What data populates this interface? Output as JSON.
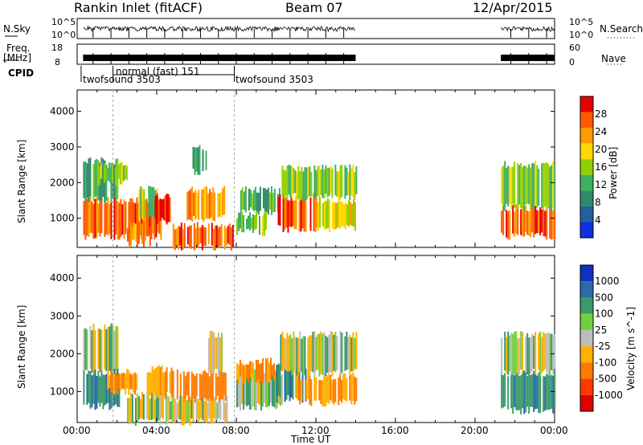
{
  "header": {
    "station": "Rankin Inlet (fitACF)",
    "beam": "Beam 07",
    "date": "12/Apr/2015"
  },
  "strip_labels": {
    "nsky": "N.Sky",
    "nsky_ticks": [
      "10^5",
      "10^0"
    ],
    "nsearch": "N.Search",
    "nsearch_ticks": [
      "10^5",
      "10^0"
    ],
    "freq": "Freq.",
    "freq_unit": "[MHz]",
    "freq_ticks": [
      "18",
      "8"
    ],
    "nave": "Nave",
    "nave_ticks": [
      "60",
      "0"
    ],
    "cpid": "CPID"
  },
  "cpid_labels": [
    "twofsound 3503",
    "normal (fast) 151",
    "twofsound 3503"
  ],
  "power_colorbar": {
    "label": "Power [dB]",
    "ticks": [
      "28",
      "24",
      "20",
      "16",
      "12",
      "8",
      "4"
    ],
    "colors": [
      "#e60000",
      "#ff5a00",
      "#ff9a00",
      "#ffd800",
      "#94d000",
      "#3fb060",
      "#2f8a6a",
      "#2060a0",
      "#1030e0"
    ]
  },
  "velocity_colorbar": {
    "label": "Velocity [m s^-1]",
    "ticks": [
      "1000",
      "500",
      "100",
      "25",
      "-25",
      "-100",
      "-500",
      "-1000"
    ],
    "colors": [
      "#1030c0",
      "#2a6aa8",
      "#3a9a6a",
      "#70d040",
      "#bdbdbd",
      "#ffb000",
      "#ff7a00",
      "#ff3a00",
      "#e00000"
    ]
  },
  "chart_data": [
    {
      "type": "heatmap",
      "panel": "power",
      "ylabel": "Slant Range [km]",
      "yticks": [
        1000,
        2000,
        3000,
        4000
      ],
      "ylim": [
        180,
        4600
      ],
      "xlim": [
        0,
        24
      ],
      "data_extent_hours": [
        [
          0.3,
          14.0
        ],
        [
          21.3,
          24.0
        ]
      ],
      "cells": [
        {
          "x": [
            0.3,
            4.2
          ],
          "y": [
            500,
            1500
          ],
          "power": 26
        },
        {
          "x": [
            0.3,
            2.0
          ],
          "y": [
            1500,
            2600
          ],
          "power": 10
        },
        {
          "x": [
            1.0,
            2.5
          ],
          "y": [
            2000,
            2500
          ],
          "power": 14
        },
        {
          "x": [
            2.5,
            3.7
          ],
          "y": [
            300,
            800
          ],
          "power": 24
        },
        {
          "x": [
            3.0,
            4.0
          ],
          "y": [
            1000,
            1800
          ],
          "power": 14
        },
        {
          "x": [
            3.9,
            4.7
          ],
          "y": [
            900,
            1600
          ],
          "power": 29
        },
        {
          "x": [
            4.8,
            7.8
          ],
          "y": [
            200,
            800
          ],
          "power": 26
        },
        {
          "x": [
            5.5,
            7.4
          ],
          "y": [
            1000,
            1800
          ],
          "power": 22
        },
        {
          "x": [
            5.8,
            6.5
          ],
          "y": [
            2300,
            3000
          ],
          "power": 8
        },
        {
          "x": [
            8.2,
            10.2
          ],
          "y": [
            1200,
            1800
          ],
          "power": 10
        },
        {
          "x": [
            8.0,
            9.5
          ],
          "y": [
            600,
            1100
          ],
          "power": 14
        },
        {
          "x": [
            10.0,
            12.0
          ],
          "y": [
            700,
            1600
          ],
          "power": 27
        },
        {
          "x": [
            10.2,
            14.0
          ],
          "y": [
            1600,
            2400
          ],
          "power": 14
        },
        {
          "x": [
            12.0,
            14.0
          ],
          "y": [
            700,
            1500
          ],
          "power": 18
        },
        {
          "x": [
            21.3,
            24.0
          ],
          "y": [
            500,
            1300
          ],
          "power": 26
        },
        {
          "x": [
            21.3,
            24.0
          ],
          "y": [
            1300,
            2500
          ],
          "power": 14
        }
      ]
    },
    {
      "type": "heatmap",
      "panel": "velocity",
      "ylabel": "Slant Range [km]",
      "xlabel": "Time UT",
      "xticks": [
        "00:00",
        "04:00",
        "08:00",
        "12:00",
        "16:00",
        "20:00",
        "00:00"
      ],
      "xtick_hours": [
        0,
        4,
        8,
        12,
        16,
        20,
        24
      ],
      "yticks": [
        1000,
        2000,
        3000,
        4000
      ],
      "ylim": [
        180,
        4600
      ],
      "xlim": [
        0,
        24
      ],
      "data_extent_hours": [
        [
          0.3,
          14.0
        ],
        [
          21.3,
          24.0
        ]
      ],
      "cells": [
        {
          "x": [
            0.3,
            2.0
          ],
          "y": [
            1500,
            2700
          ],
          "velocity": 0
        },
        {
          "x": [
            0.3,
            2.2
          ],
          "y": [
            600,
            1500
          ],
          "velocity": 150
        },
        {
          "x": [
            1.5,
            3.0
          ],
          "y": [
            1000,
            1500
          ],
          "velocity": -200
        },
        {
          "x": [
            2.5,
            4.5
          ],
          "y": [
            200,
            900
          ],
          "velocity": 0
        },
        {
          "x": [
            3.5,
            4.8
          ],
          "y": [
            900,
            1600
          ],
          "velocity": -150
        },
        {
          "x": [
            4.5,
            7.5
          ],
          "y": [
            200,
            800
          ],
          "velocity": 0
        },
        {
          "x": [
            5.0,
            7.5
          ],
          "y": [
            800,
            1500
          ],
          "velocity": -300
        },
        {
          "x": [
            6.5,
            7.3
          ],
          "y": [
            1500,
            2500
          ],
          "velocity": 0
        },
        {
          "x": [
            8.0,
            10.3
          ],
          "y": [
            600,
            1500
          ],
          "velocity": 0
        },
        {
          "x": [
            8.0,
            10.0
          ],
          "y": [
            1300,
            1800
          ],
          "velocity": -200
        },
        {
          "x": [
            10.0,
            11.5
          ],
          "y": [
            800,
            1700
          ],
          "velocity": 200
        },
        {
          "x": [
            11.0,
            14.0
          ],
          "y": [
            700,
            1400
          ],
          "velocity": -150
        },
        {
          "x": [
            10.2,
            14.0
          ],
          "y": [
            1500,
            2500
          ],
          "velocity": 0
        },
        {
          "x": [
            21.3,
            24.0
          ],
          "y": [
            500,
            1500
          ],
          "velocity": 150
        },
        {
          "x": [
            21.3,
            24.0
          ],
          "y": [
            1500,
            2500
          ],
          "velocity": 0
        }
      ]
    }
  ]
}
